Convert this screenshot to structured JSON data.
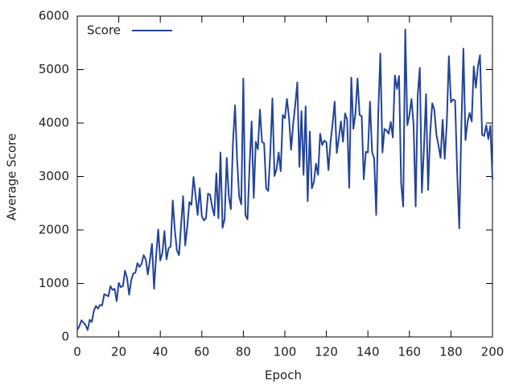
{
  "chart_data": {
    "type": "line",
    "xlabel": "Epoch",
    "ylabel": "Average Score",
    "legend": "top-left",
    "xlim": [
      0,
      200
    ],
    "xticks": [
      0,
      20,
      40,
      60,
      80,
      100,
      120,
      140,
      160,
      180,
      200
    ],
    "ylim": [
      0,
      6000
    ],
    "yticks": [
      0,
      1000,
      2000,
      3000,
      4000,
      5000,
      6000
    ],
    "x": [
      0,
      1,
      2,
      3,
      4,
      5,
      6,
      7,
      8,
      9,
      10,
      11,
      12,
      13,
      14,
      15,
      16,
      17,
      18,
      19,
      20,
      21,
      22,
      23,
      24,
      25,
      26,
      27,
      28,
      29,
      30,
      31,
      32,
      33,
      34,
      35,
      36,
      37,
      38,
      39,
      40,
      41,
      42,
      43,
      44,
      45,
      46,
      47,
      48,
      49,
      50,
      51,
      52,
      53,
      54,
      55,
      56,
      57,
      58,
      59,
      60,
      61,
      62,
      63,
      64,
      65,
      66,
      67,
      68,
      69,
      70,
      71,
      72,
      73,
      74,
      75,
      76,
      77,
      78,
      79,
      80,
      81,
      82,
      83,
      84,
      85,
      86,
      87,
      88,
      89,
      90,
      91,
      92,
      93,
      94,
      95,
      96,
      97,
      98,
      99,
      100,
      101,
      102,
      103,
      104,
      105,
      106,
      107,
      108,
      109,
      110,
      111,
      112,
      113,
      114,
      115,
      116,
      117,
      118,
      119,
      120,
      121,
      122,
      123,
      124,
      125,
      126,
      127,
      128,
      129,
      130,
      131,
      132,
      133,
      134,
      135,
      136,
      137,
      138,
      139,
      140,
      141,
      142,
      143,
      144,
      145,
      146,
      147,
      148,
      149,
      150,
      151,
      152,
      153,
      154,
      155,
      156,
      157,
      158,
      159,
      160,
      161,
      162,
      163,
      164,
      165,
      166,
      167,
      168,
      169,
      170,
      171,
      172,
      173,
      174,
      175,
      176,
      177,
      178,
      179,
      180,
      181,
      182,
      183,
      184,
      185,
      186,
      187,
      188,
      189,
      190,
      191,
      192,
      193,
      194,
      195,
      196,
      197,
      198,
      199,
      200
    ],
    "series": [
      {
        "name": "Score",
        "color": "#22439a",
        "values": [
          130,
          200,
          310,
          270,
          220,
          130,
          320,
          280,
          490,
          580,
          530,
          600,
          590,
          800,
          780,
          760,
          950,
          880,
          900,
          670,
          1010,
          930,
          950,
          1240,
          1100,
          790,
          1060,
          1190,
          1200,
          1380,
          1310,
          1370,
          1530,
          1450,
          1170,
          1440,
          1740,
          900,
          1520,
          2010,
          1430,
          1570,
          1980,
          1450,
          1660,
          1690,
          2550,
          2000,
          1620,
          1530,
          2080,
          2630,
          1710,
          2060,
          2520,
          2470,
          2990,
          2640,
          2280,
          2780,
          2260,
          2180,
          2220,
          2680,
          2660,
          2430,
          2270,
          3060,
          2220,
          3450,
          2040,
          2210,
          3350,
          2630,
          2390,
          3640,
          4330,
          3320,
          2620,
          2480,
          4830,
          2280,
          2200,
          3200,
          4030,
          2600,
          3650,
          3510,
          4250,
          3650,
          3620,
          2780,
          2730,
          3460,
          4460,
          3010,
          3140,
          3450,
          3100,
          4150,
          4090,
          4450,
          4100,
          3500,
          3980,
          4340,
          4760,
          3180,
          4220,
          3030,
          4310,
          2540,
          3840,
          2780,
          2900,
          3240,
          3030,
          3800,
          3590,
          3670,
          3640,
          3120,
          3640,
          3990,
          4400,
          3440,
          3720,
          4030,
          3650,
          4180,
          4060,
          2790,
          4850,
          3890,
          4180,
          4830,
          4150,
          4130,
          2950,
          3460,
          3450,
          4400,
          3460,
          3340,
          2280,
          4200,
          5300,
          3450,
          3890,
          3860,
          3800,
          4020,
          3730,
          4890,
          4640,
          4880,
          2880,
          2440,
          5750,
          3960,
          4150,
          4450,
          3960,
          2440,
          4530,
          5030,
          2700,
          3530,
          4540,
          2750,
          3810,
          4370,
          4250,
          3780,
          3580,
          3350,
          4060,
          3330,
          4000,
          5250,
          4390,
          4440,
          4420,
          3090,
          2030,
          3910,
          5390,
          3680,
          4020,
          4190,
          4030,
          5060,
          4660,
          5060,
          5270,
          3780,
          3760,
          3960,
          3700,
          3950,
          2950
        ]
      }
    ]
  }
}
